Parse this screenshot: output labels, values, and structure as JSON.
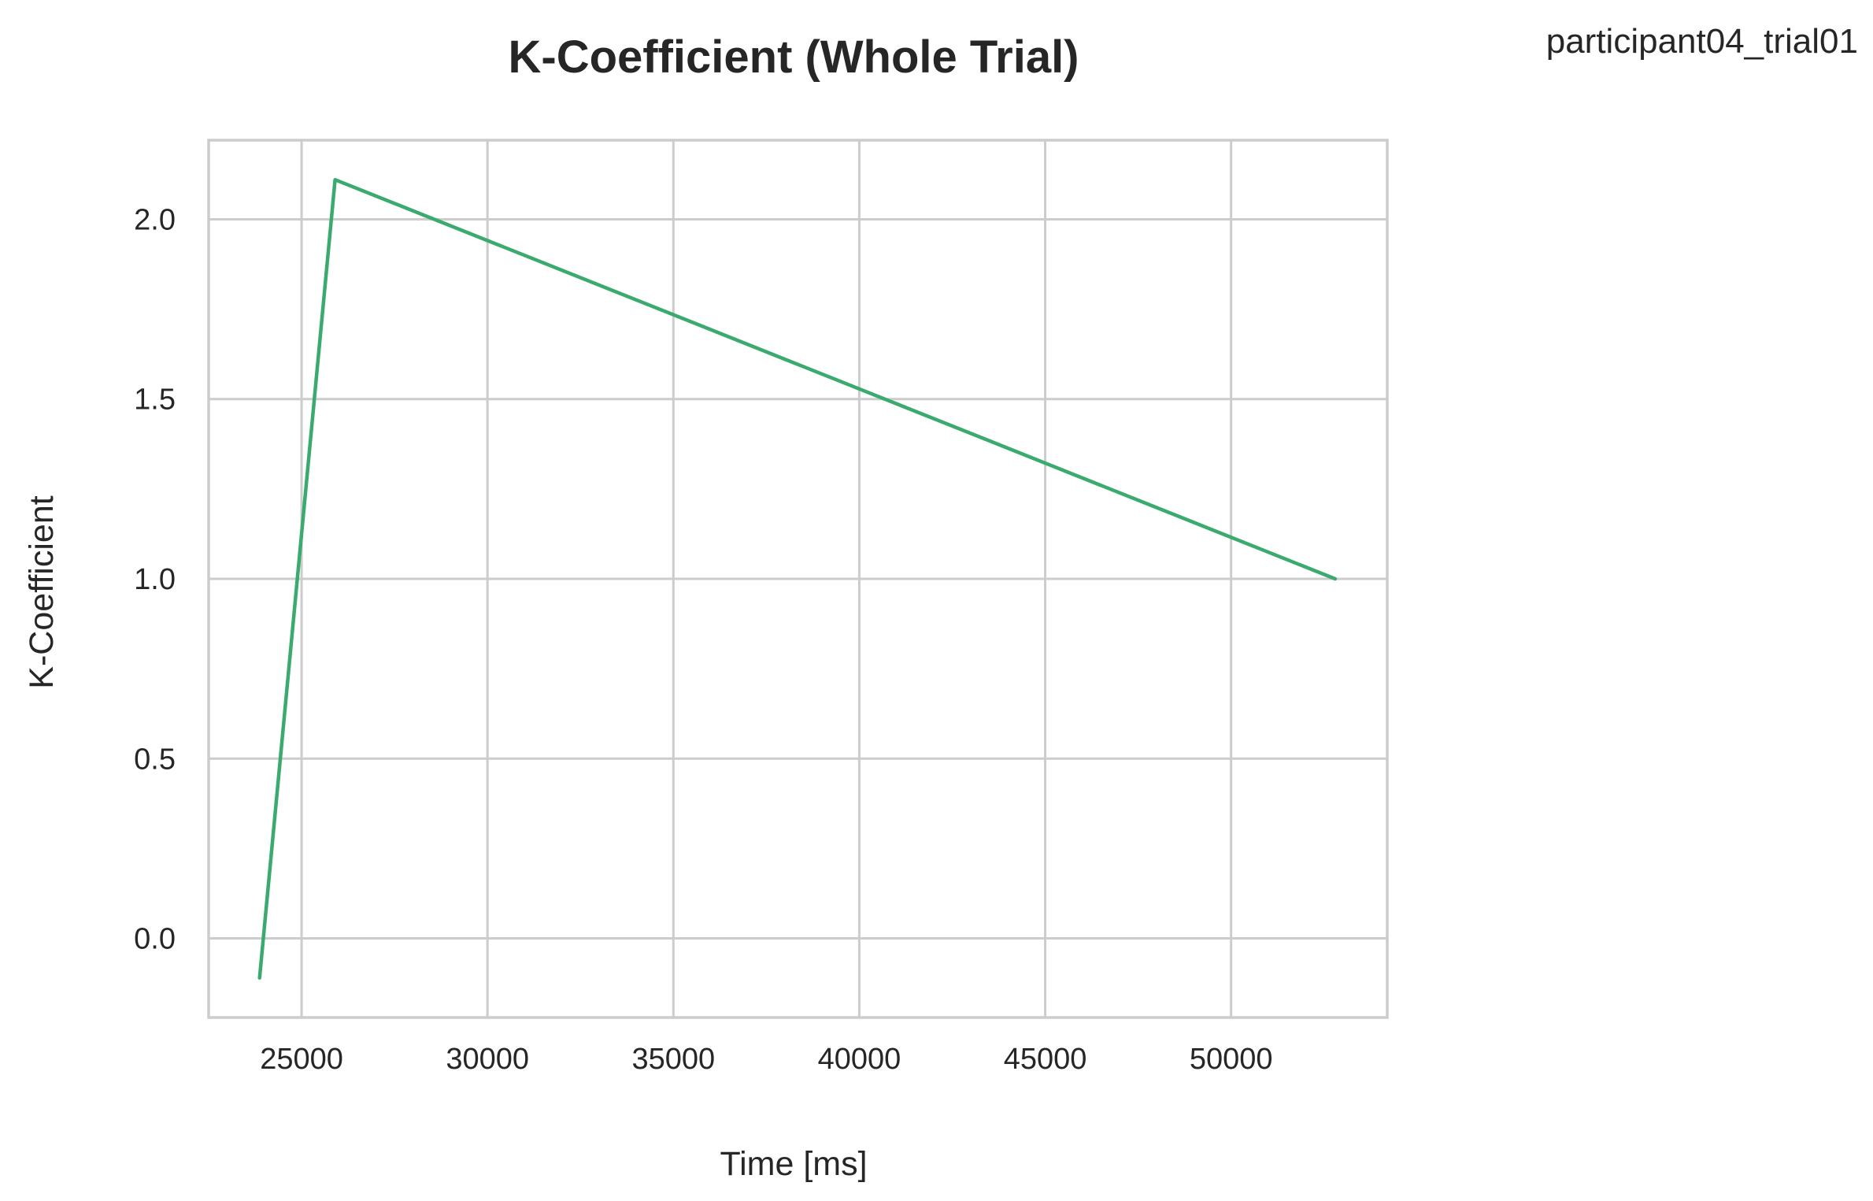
{
  "header": {
    "note": "participant04_trial01"
  },
  "chart_data": {
    "type": "line",
    "title": "K-Coefficient (Whole Trial)",
    "xlabel": "Time [ms]",
    "ylabel": "K-Coefficient",
    "xlim": [
      22500,
      54200
    ],
    "ylim": [
      -0.22,
      2.22
    ],
    "xticks": [
      25000,
      30000,
      35000,
      40000,
      45000,
      50000
    ],
    "yticks": [
      0.0,
      0.5,
      1.0,
      1.5,
      2.0
    ],
    "xtick_labels": [
      "25000",
      "30000",
      "35000",
      "40000",
      "45000",
      "50000"
    ],
    "ytick_labels": [
      "0.0",
      "0.5",
      "1.0",
      "1.5",
      "2.0"
    ],
    "grid": true,
    "series": [
      {
        "name": "K-Coefficient",
        "color": "#3aaa6e",
        "x": [
          23870,
          25900,
          52800
        ],
        "y": [
          -0.11,
          2.11,
          1.0
        ]
      }
    ]
  }
}
